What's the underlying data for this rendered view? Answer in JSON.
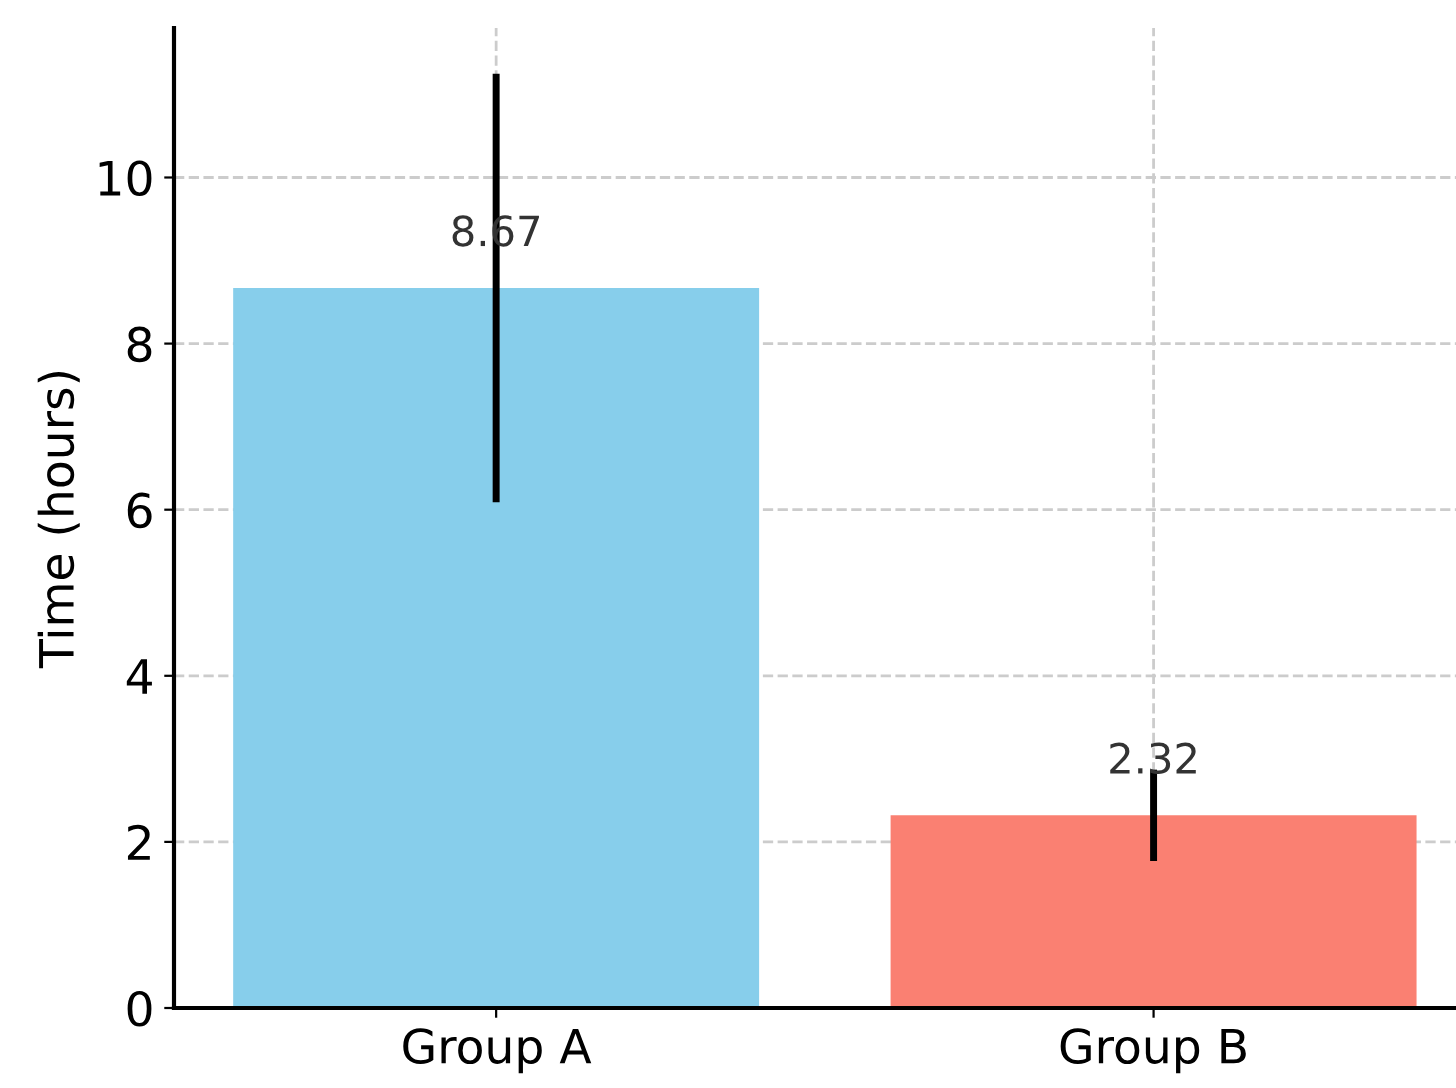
{
  "chart_data": {
    "type": "bar",
    "ylabel": "Time (hours)",
    "categories": [
      "Group A",
      "Group B"
    ],
    "values": [
      8.67,
      2.32
    ],
    "colors": [
      "#87ceeb",
      "#fa8072"
    ],
    "errors": [
      2.58,
      0.55
    ],
    "ylim": [
      0,
      11.8
    ],
    "yticks": [
      0,
      2,
      4,
      6,
      8,
      10
    ],
    "grid": true,
    "data_labels": true
  }
}
